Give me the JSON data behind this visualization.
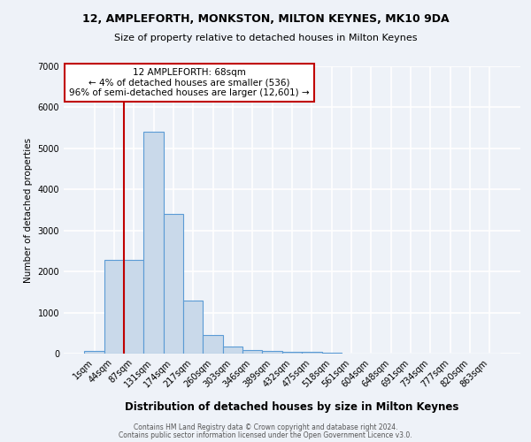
{
  "title1": "12, AMPLEFORTH, MONKSTON, MILTON KEYNES, MK10 9DA",
  "title2": "Size of property relative to detached houses in Milton Keynes",
  "xlabel": "Distribution of detached houses by size in Milton Keynes",
  "ylabel": "Number of detached properties",
  "categories": [
    "1sqm",
    "44sqm",
    "87sqm",
    "131sqm",
    "174sqm",
    "217sqm",
    "260sqm",
    "303sqm",
    "346sqm",
    "389sqm",
    "432sqm",
    "475sqm",
    "518sqm",
    "561sqm",
    "604sqm",
    "648sqm",
    "691sqm",
    "734sqm",
    "777sqm",
    "820sqm",
    "863sqm"
  ],
  "values": [
    75,
    2280,
    2280,
    5400,
    3400,
    1300,
    460,
    175,
    85,
    75,
    40,
    35,
    15,
    8,
    5,
    3,
    2,
    2,
    1,
    1,
    1
  ],
  "bar_color": "#c9d9ea",
  "bar_edge_color": "#5b9bd5",
  "property_line_color": "#c00000",
  "property_line_x": 1.5,
  "annotation_line1": "12 AMPLEFORTH: 68sqm",
  "annotation_line2": "← 4% of detached houses are smaller (536)",
  "annotation_line3": "96% of semi-detached houses are larger (12,601) →",
  "annotation_box_color": "white",
  "annotation_box_edge": "#c00000",
  "ylim_max": 7000,
  "ytick_step": 1000,
  "footer1": "Contains HM Land Registry data © Crown copyright and database right 2024.",
  "footer2": "Contains public sector information licensed under the Open Government Licence v3.0.",
  "bg_color": "#eef2f8",
  "grid_color": "white"
}
